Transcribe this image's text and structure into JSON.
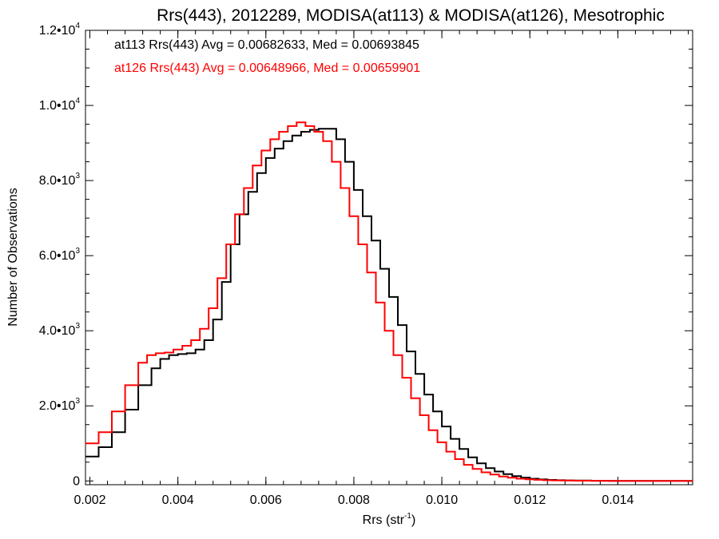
{
  "chart_data": {
    "type": "line",
    "step": true,
    "title": "Rrs(443), 2012289, MODISA(at113) & MODISA(at126), Mesotrophic",
    "xlabel": "Rrs (str",
    "xlabel_sup": "-1",
    "xlabel_end": ")",
    "ylabel": "Number of Observations",
    "xlim": [
      0.0019,
      0.0157
    ],
    "ylim": [
      -100,
      12000
    ],
    "grid": false,
    "xticks": [
      {
        "v": 0.002,
        "label": "0.002"
      },
      {
        "v": 0.004,
        "label": "0.004"
      },
      {
        "v": 0.006,
        "label": "0.006"
      },
      {
        "v": 0.008,
        "label": "0.008"
      },
      {
        "v": 0.01,
        "label": "0.010"
      },
      {
        "v": 0.012,
        "label": "0.012"
      },
      {
        "v": 0.014,
        "label": "0.014"
      }
    ],
    "yticks": [
      {
        "v": 0,
        "label": "0",
        "exp": ""
      },
      {
        "v": 2000,
        "label": "2.0•10",
        "exp": "3"
      },
      {
        "v": 4000,
        "label": "4.0•10",
        "exp": "3"
      },
      {
        "v": 6000,
        "label": "6.0•10",
        "exp": "3"
      },
      {
        "v": 8000,
        "label": "8.0•10",
        "exp": "3"
      },
      {
        "v": 10000,
        "label": "1.0•10",
        "exp": "4"
      },
      {
        "v": 12000,
        "label": "1.2•10",
        "exp": "4"
      }
    ],
    "annotations": [
      "at113 Rrs(443) Avg = 0.00682633, Med = 0.00693845",
      "at126 Rrs(443) Avg = 0.00648966, Med = 0.00659901"
    ],
    "series": [
      {
        "color": "#000000",
        "x": [
          0.0019,
          0.0022,
          0.0025,
          0.0028,
          0.0031,
          0.0034,
          0.0036,
          0.0038,
          0.004,
          0.0042,
          0.0044,
          0.0046,
          0.0048,
          0.005,
          0.0052,
          0.0054,
          0.0056,
          0.0058,
          0.006,
          0.0062,
          0.0064,
          0.0066,
          0.0068,
          0.007,
          0.0072,
          0.0074,
          0.0076,
          0.0078,
          0.008,
          0.0082,
          0.0084,
          0.0086,
          0.0088,
          0.009,
          0.0092,
          0.0094,
          0.0096,
          0.0098,
          0.01,
          0.0102,
          0.0104,
          0.0106,
          0.0108,
          0.011,
          0.0112,
          0.0114,
          0.0116,
          0.0118,
          0.012,
          0.0122,
          0.0124,
          0.0126,
          0.0128,
          0.013,
          0.0134,
          0.0138,
          0.0142,
          0.0146,
          0.015,
          0.0157
        ],
        "y": [
          650,
          900,
          1300,
          1900,
          2550,
          3000,
          3250,
          3350,
          3380,
          3400,
          3500,
          3750,
          4300,
          5300,
          6300,
          7100,
          7700,
          8200,
          8600,
          8850,
          9050,
          9200,
          9300,
          9350,
          9380,
          9380,
          9100,
          8500,
          7750,
          7050,
          6400,
          5650,
          4900,
          4150,
          3450,
          2850,
          2300,
          1850,
          1450,
          1120,
          850,
          630,
          470,
          340,
          250,
          180,
          130,
          90,
          60,
          40,
          28,
          20,
          14,
          10,
          5,
          3,
          2,
          1,
          0,
          0
        ]
      },
      {
        "color": "#ff0000",
        "x": [
          0.0019,
          0.0022,
          0.0025,
          0.0028,
          0.0031,
          0.0033,
          0.0035,
          0.0037,
          0.0039,
          0.0041,
          0.0043,
          0.0045,
          0.0047,
          0.0049,
          0.0051,
          0.0053,
          0.0055,
          0.0057,
          0.0059,
          0.0061,
          0.0063,
          0.0065,
          0.0067,
          0.0069,
          0.0071,
          0.0073,
          0.0075,
          0.0077,
          0.0079,
          0.0081,
          0.0083,
          0.0085,
          0.0087,
          0.0089,
          0.0091,
          0.0093,
          0.0095,
          0.0097,
          0.0099,
          0.0101,
          0.0103,
          0.0105,
          0.0107,
          0.0109,
          0.0111,
          0.0113,
          0.0115,
          0.0117,
          0.0119,
          0.0121,
          0.0123,
          0.0125,
          0.0127,
          0.013,
          0.0134,
          0.0138,
          0.0142,
          0.0146,
          0.015,
          0.0157
        ],
        "y": [
          1000,
          1300,
          1850,
          2550,
          3150,
          3350,
          3400,
          3420,
          3500,
          3600,
          3750,
          4050,
          4600,
          5400,
          6300,
          7100,
          7800,
          8400,
          8800,
          9100,
          9300,
          9450,
          9550,
          9450,
          9300,
          9050,
          8500,
          7800,
          7050,
          6300,
          5550,
          4750,
          4000,
          3350,
          2750,
          2200,
          1750,
          1350,
          1030,
          780,
          580,
          430,
          320,
          230,
          170,
          120,
          85,
          60,
          42,
          30,
          20,
          14,
          10,
          6,
          4,
          2,
          1,
          1,
          0,
          0
        ]
      }
    ]
  }
}
